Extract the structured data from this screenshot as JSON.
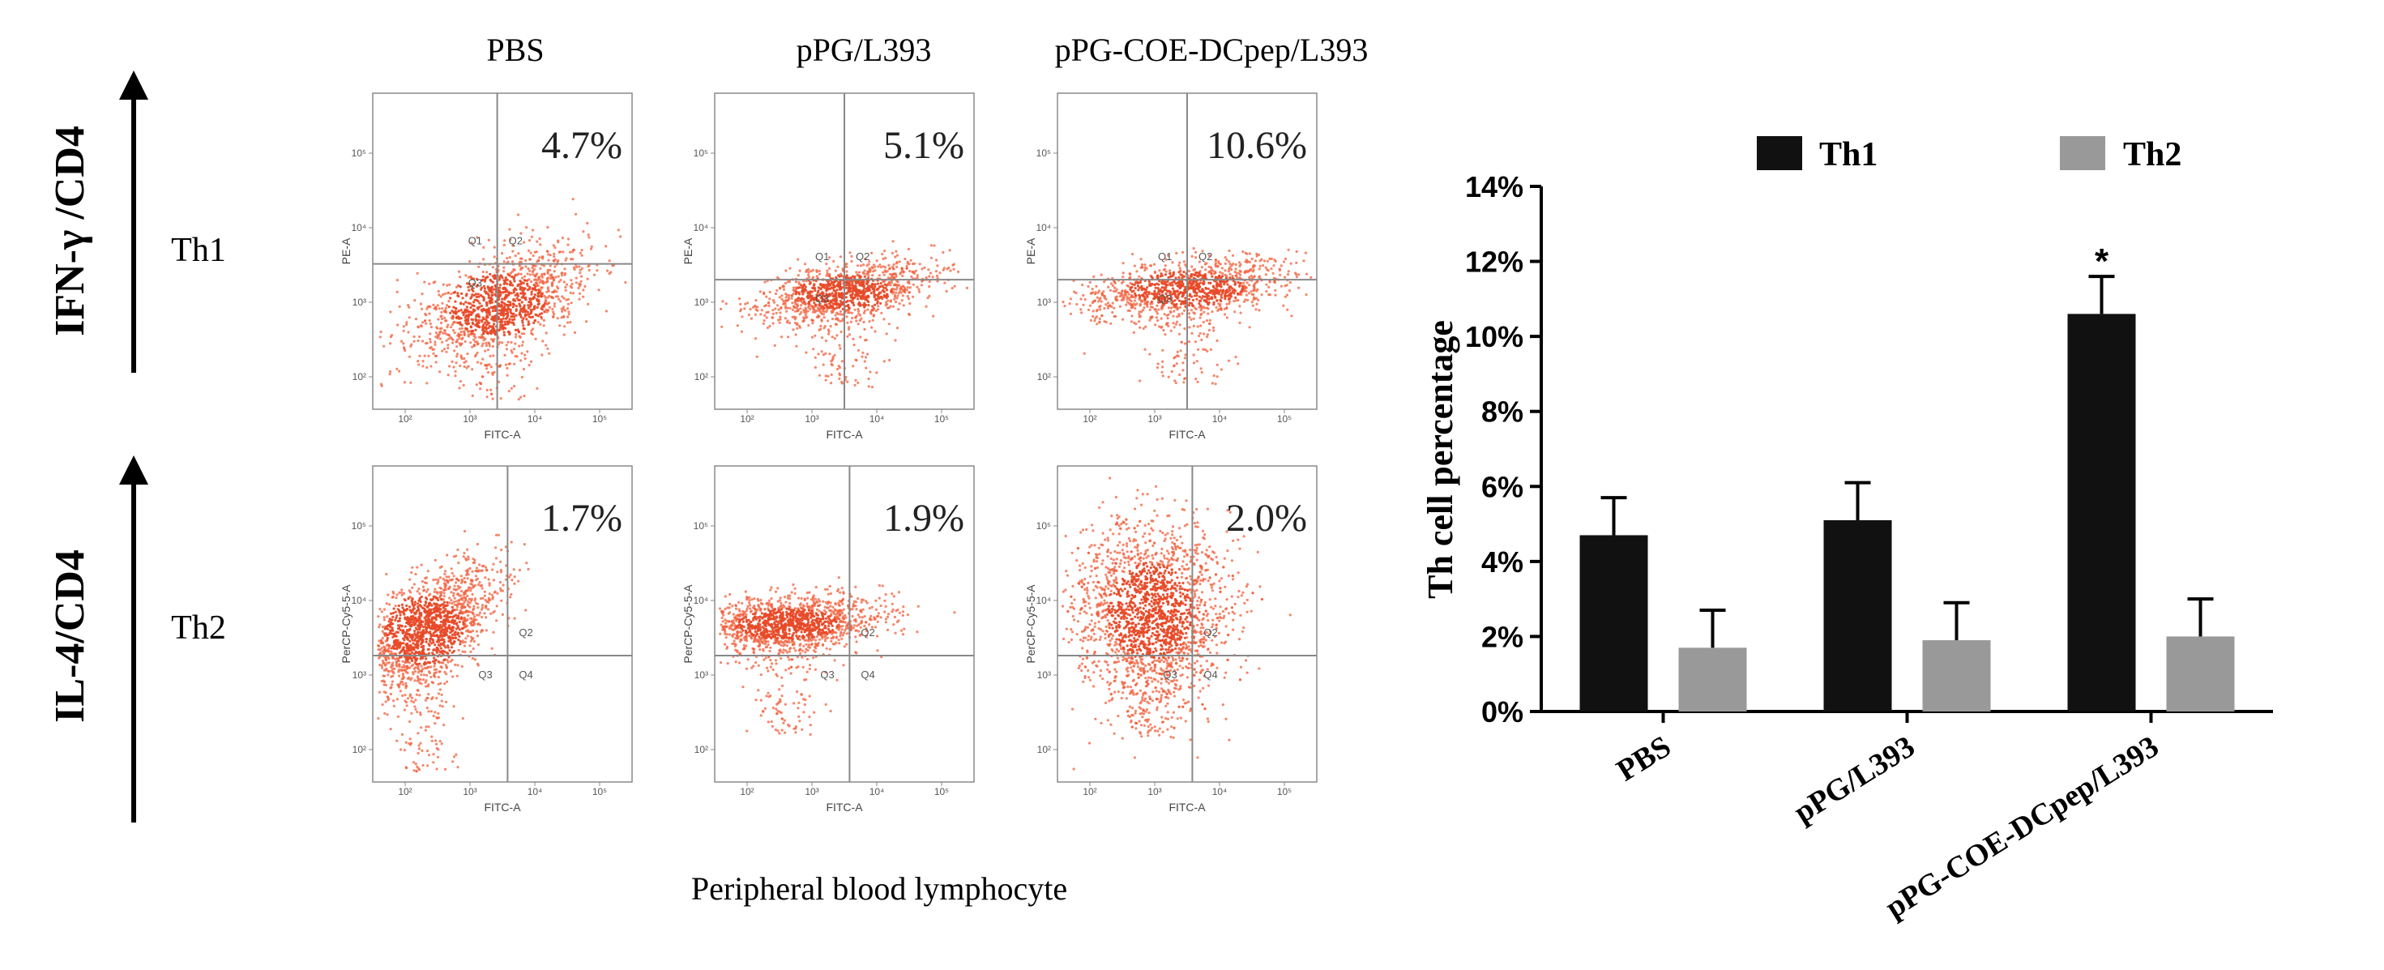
{
  "figure": {
    "left_panel": {
      "y_axis_labels": [
        "IFN-γ /CD4",
        "IL-4/CD4"
      ],
      "row_labels": [
        "Th1",
        "Th2"
      ],
      "column_titles": [
        "PBS",
        "pPG/L393",
        "pPG-COE-DCpep/L393"
      ],
      "bottom_caption": "Peripheral blood lymphocyte",
      "x_param": "FITC-A",
      "row_y_params": [
        "PE-A",
        "PerCP-Cy5-5-A"
      ],
      "quadrant_labels": [
        "Q1",
        "Q2",
        "Q3",
        "Q4"
      ],
      "tick_labels": [
        "10²",
        "10³",
        "10⁴",
        "10⁵"
      ],
      "cells": [
        [
          {
            "value": "4.7%"
          },
          {
            "value": "5.1%"
          },
          {
            "value": "10.6%"
          }
        ],
        [
          {
            "value": "1.7%"
          },
          {
            "value": "1.9%"
          },
          {
            "value": "2.0%"
          }
        ]
      ]
    }
  },
  "chart_data": {
    "type": "bar",
    "title": "",
    "xlabel": "",
    "ylabel": "Th cell percentage",
    "categories": [
      "PBS",
      "pPG/L393",
      "pPG-COE-DCpep/L393"
    ],
    "series": [
      {
        "name": "Th1",
        "values": [
          4.7,
          5.1,
          10.6
        ],
        "errors": [
          1.0,
          1.0,
          1.0
        ],
        "color": "#111111"
      },
      {
        "name": "Th2",
        "values": [
          1.7,
          1.9,
          2.0
        ],
        "errors": [
          1.0,
          1.0,
          1.0
        ],
        "color": "#999999"
      }
    ],
    "ylim": [
      0,
      14
    ],
    "yticks": [
      0,
      2,
      4,
      6,
      8,
      10,
      12,
      14
    ],
    "ytick_labels": [
      "0%",
      "2%",
      "4%",
      "6%",
      "8%",
      "10%",
      "12%",
      "14%"
    ],
    "annotations": [
      {
        "category": "pPG-COE-DCpep/L393",
        "series": "Th1",
        "text": "*"
      }
    ],
    "legend_position": "top",
    "grid": false
  },
  "colors": {
    "dots": "#f0603c",
    "dots_dense": "#e84a28",
    "gate": "#888888",
    "axis": "#000000"
  }
}
